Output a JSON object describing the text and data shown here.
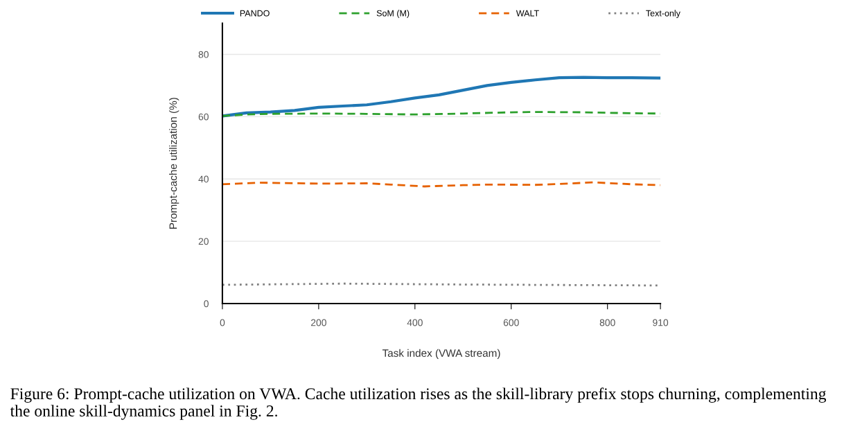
{
  "chart_data": {
    "type": "line",
    "xlabel": "Task index (VWA stream)",
    "ylabel": "Prompt-cache utilization (%)",
    "xlim": [
      0,
      910
    ],
    "xticks": [
      0,
      200,
      400,
      600,
      800,
      910
    ],
    "ylim": [
      0,
      90
    ],
    "yticks": [
      0,
      20,
      40,
      60,
      80
    ],
    "grid": "y",
    "legend": "top",
    "marker": "none",
    "series": [
      {
        "name": "PANDO",
        "color": "#1f77b4",
        "line_style": "solid",
        "x": [
          0,
          50,
          100,
          150,
          200,
          250,
          300,
          350,
          400,
          450,
          500,
          550,
          600,
          650,
          700,
          750,
          800,
          850,
          910
        ],
        "values": [
          60.2,
          61.2,
          61.5,
          62.0,
          63.0,
          63.4,
          63.8,
          64.8,
          66.0,
          67.0,
          68.5,
          70.0,
          71.0,
          71.8,
          72.5,
          72.6,
          72.5,
          72.5,
          72.4
        ]
      },
      {
        "name": "SoM (M)",
        "color": "#2ca02c",
        "line_style": "dashed",
        "x": [
          0,
          50,
          100,
          200,
          300,
          400,
          500,
          600,
          650,
          750,
          850,
          910
        ],
        "values": [
          60.2,
          60.7,
          60.9,
          61.0,
          60.9,
          60.7,
          61.0,
          61.4,
          61.5,
          61.4,
          61.1,
          61.0
        ]
      },
      {
        "name": "WALT",
        "color": "#e66101",
        "line_style": "dashed",
        "x": [
          0,
          80,
          200,
          300,
          350,
          420,
          500,
          550,
          650,
          700,
          770,
          850,
          910
        ],
        "values": [
          38.3,
          38.8,
          38.5,
          38.6,
          38.2,
          37.6,
          38.0,
          38.2,
          38.1,
          38.4,
          38.9,
          38.3,
          38.0
        ]
      },
      {
        "name": "Text-only",
        "color": "#808080",
        "line_style": "dotted",
        "x": [
          0,
          250,
          500,
          910
        ],
        "values": [
          6.0,
          6.4,
          6.1,
          5.8
        ]
      }
    ],
    "annotations": [
      "Figure 6: Prompt-cache utilization on VWA. Cache utilization rises as the skill-library prefix stops churning, complementing the online skill-dynamics panel in Fig. 2."
    ]
  }
}
